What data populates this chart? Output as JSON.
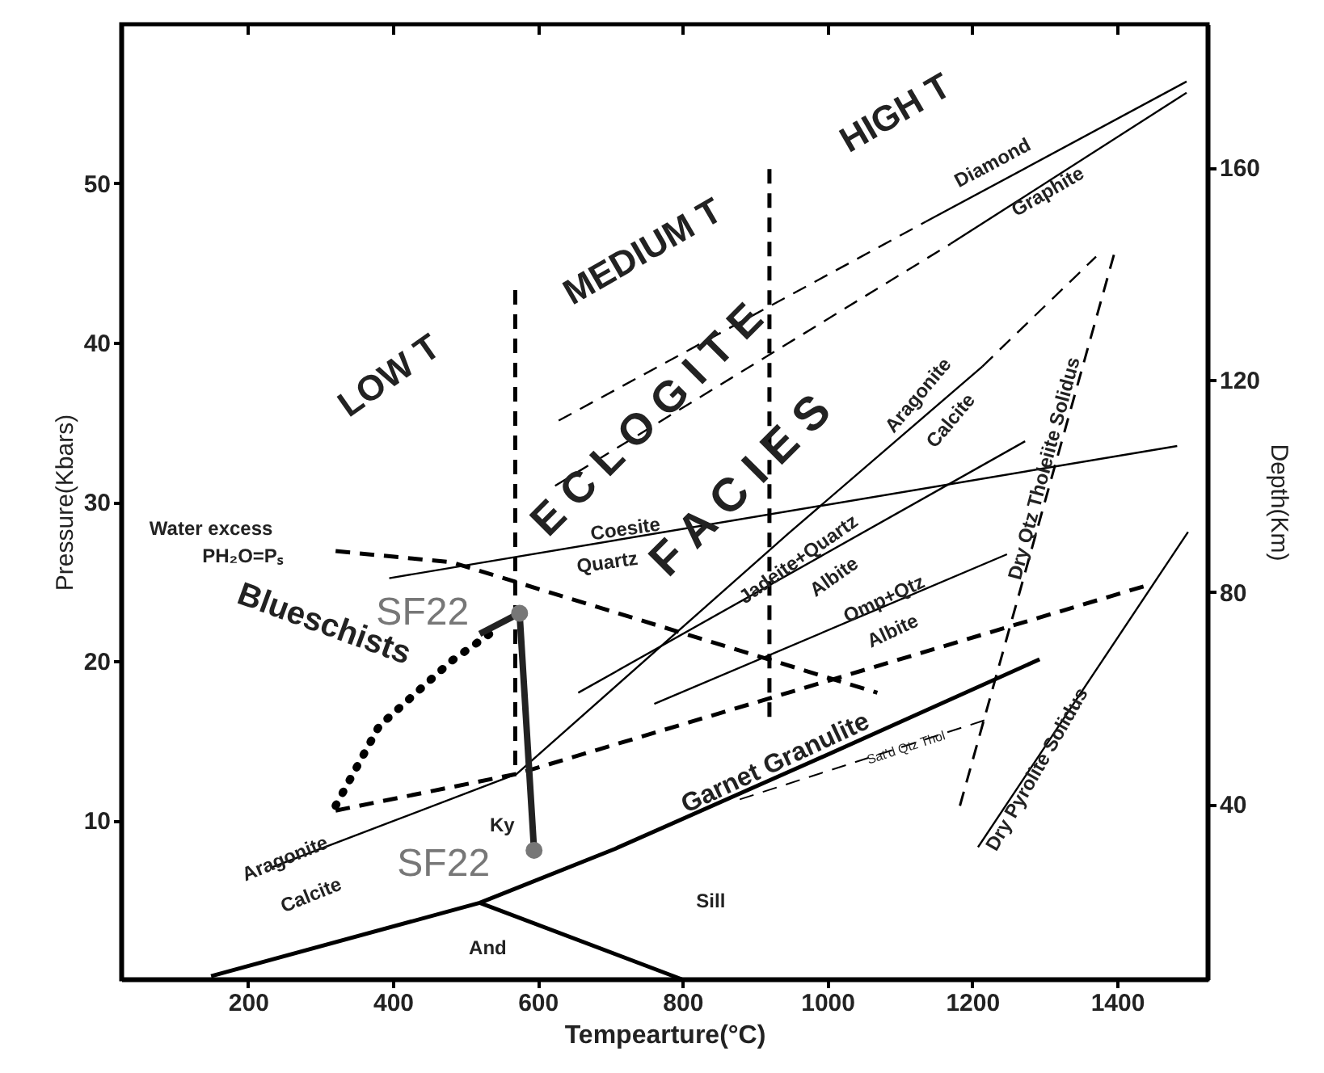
{
  "chart_data": {
    "type": "line",
    "xlabel": "Tempearture(°C)",
    "ylabel": "Pressure(Kbars)",
    "y2label": "Depth(Km)",
    "xlim": [
      25,
      1525
    ],
    "xticks": [
      200,
      400,
      600,
      800,
      1000,
      1200,
      1400
    ],
    "ylim": [
      0,
      60
    ],
    "yticks": [
      10,
      20,
      30,
      40,
      50
    ],
    "y2lim": [
      7,
      187
    ],
    "y2ticks": [
      40,
      80,
      120,
      160
    ],
    "series": [
      {
        "color": "#000000",
        "line_style": "solid",
        "x": [
          149,
          520,
          707,
          975,
          1293
        ],
        "values": [
          0.2,
          4.8,
          8.2,
          13.6,
          20.1
        ]
      },
      {
        "color": "#000000",
        "line_style": "solid",
        "x": [
          520,
          799
        ],
        "values": [
          4.8,
          0
        ]
      },
      {
        "color": "#000000",
        "line_style": "solid",
        "x": [
          231,
          571,
          946,
          1214
        ],
        "values": [
          7.0,
          12.9,
          28.0,
          38.5
        ]
      },
      {
        "color": "#000000",
        "line_style": "dashed",
        "x": [
          1214,
          1371
        ],
        "values": [
          38.5,
          45.4
        ]
      },
      {
        "color": "#000000",
        "line_style": "solid",
        "x": [
          395,
          1483
        ],
        "values": [
          25.2,
          33.5
        ]
      },
      {
        "color": "#000000",
        "line_style": "solid",
        "x": [
          656,
          1273
        ],
        "values": [
          18.0,
          33.8
        ]
      },
      {
        "color": "#000000",
        "line_style": "solid",
        "x": [
          761,
          1248
        ],
        "values": [
          17.3,
          26.7
        ]
      },
      {
        "color": "#000000",
        "line_style": "dashed",
        "x": [
          1183,
          1398
        ],
        "values": [
          10.9,
          45.9
        ]
      },
      {
        "color": "#000000",
        "line_style": "solid",
        "x": [
          1208,
          1498
        ],
        "values": [
          8.3,
          28.1
        ]
      },
      {
        "color": "#000000",
        "line_style": "dashed",
        "x": [
          629,
          1136
        ],
        "values": [
          35.1,
          47.6
        ]
      },
      {
        "color": "#000000",
        "line_style": "solid",
        "x": [
          1136,
          1496
        ],
        "values": [
          47.6,
          56.4
        ]
      },
      {
        "color": "#000000",
        "line_style": "dashed",
        "x": [
          624,
          1170
        ],
        "values": [
          31.0,
          46.2
        ]
      },
      {
        "color": "#000000",
        "line_style": "solid",
        "x": [
          1170,
          1496
        ],
        "values": [
          46.2,
          55.7
        ]
      },
      {
        "color": "#000000",
        "line_style": "dashed",
        "x": [
          569,
          569
        ],
        "values": [
          43.3,
          12.9
        ]
      },
      {
        "color": "#000000",
        "line_style": "dashed",
        "x": [
          920,
          920
        ],
        "values": [
          50.9,
          16.3
        ]
      },
      {
        "color": "#000000",
        "line_style": "dashed",
        "x": [
          321,
          481,
          1069
        ],
        "values": [
          26.9,
          26.2,
          18.0
        ]
      },
      {
        "color": "#000000",
        "line_style": "dashed",
        "x": [
          321,
          571,
          1438
        ],
        "values": [
          10.6,
          12.9,
          24.7
        ]
      },
      {
        "color": "#000000",
        "line_style": "dotted",
        "x": [
          321,
          381,
          481,
          540
        ],
        "values": [
          10.9,
          15.9,
          20.0,
          21.9
        ]
      },
      {
        "color": "#222222",
        "line_style": "solid",
        "x": [
          520,
          575,
          595
        ],
        "values": [
          21.7,
          23.0,
          8.1
        ]
      },
      {
        "type": "scatter",
        "color": "#777777",
        "x": [
          575,
          595
        ],
        "values": [
          23.0,
          8.1
        ]
      },
      {
        "color": "#000000",
        "line_style": "dashed",
        "x": [
          879,
          1219
        ],
        "values": [
          11.3,
          16.3
        ]
      }
    ],
    "annotations": [
      "LOW T",
      "MEDIUM T",
      "HIGH T",
      {
        "text": "E C L O G I T E",
        "x": 752,
        "y": 35.1
      },
      "F A C I E S",
      "Blueschists",
      "Water excess",
      "PH₂O=Pₛ",
      {
        "text": "Coesite",
        "x": 721,
        "y": 28.3
      },
      "Quartz",
      {
        "text": "Jadeite+Quartz",
        "x": 960,
        "y": 26.4
      },
      "Albite",
      {
        "text": "Omp+Qtz",
        "x": 1078,
        "y": 23.9
      },
      "Albite",
      {
        "text": "Aragonite",
        "x": 251,
        "y": 7.6
      },
      "Calcite",
      "Aragonite",
      "Calcite",
      "Diamond",
      {
        "text": "Graphite",
        "x": 1304,
        "y": 49.5
      },
      {
        "text": "Dry Qtz Tholeiite Solidus",
        "x": 1299,
        "y": 32.1
      },
      {
        "text": "Dry Pyrolite Solidus",
        "x": 1289,
        "y": 13.2
      },
      "Garnet Granulite",
      {
        "text": "Sat'd Qtz Thol",
        "x": 1109,
        "y": 14.5
      },
      "Ky",
      "Sill",
      "And",
      "SF22",
      "SF22"
    ]
  }
}
